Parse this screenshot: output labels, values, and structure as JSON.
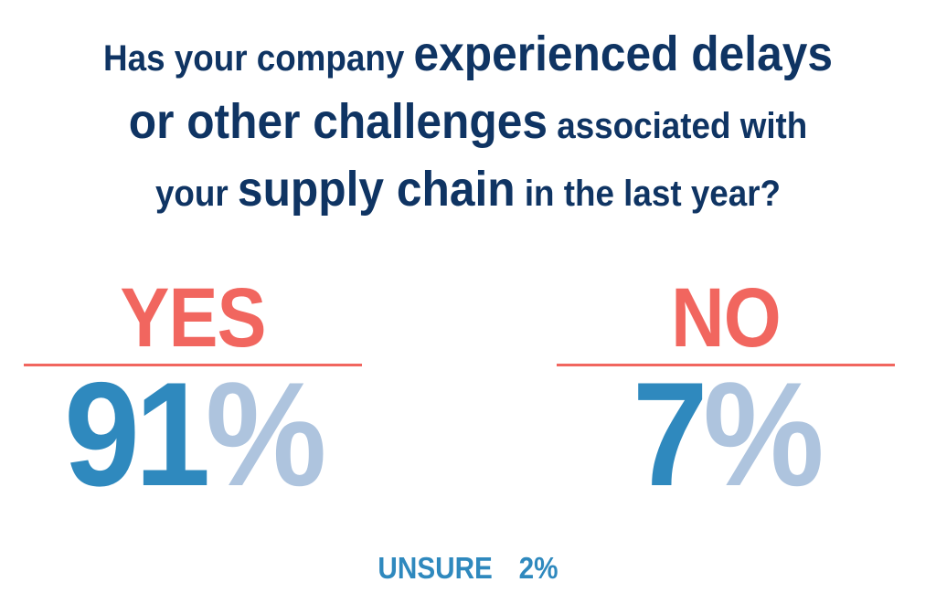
{
  "question": {
    "line1": [
      "Has your company ",
      "experienced delays"
    ],
    "line2": [
      "or other challenges",
      " associated with"
    ],
    "line3": [
      "your ",
      "supply chain",
      " in the last year?"
    ]
  },
  "answers": [
    {
      "label": "YES",
      "number": "91",
      "percent_sign": "%",
      "value_percent": 91
    },
    {
      "label": "NO",
      "number": "7",
      "percent_sign": "%",
      "value_percent": 7
    }
  ],
  "unsure": {
    "label": "UNSURE",
    "value": "2%"
  },
  "colors": {
    "heading": "#0f3463",
    "accent_red": "#f1665f",
    "number_blue": "#2f89be",
    "percent_light_blue": "#aec4de"
  }
}
